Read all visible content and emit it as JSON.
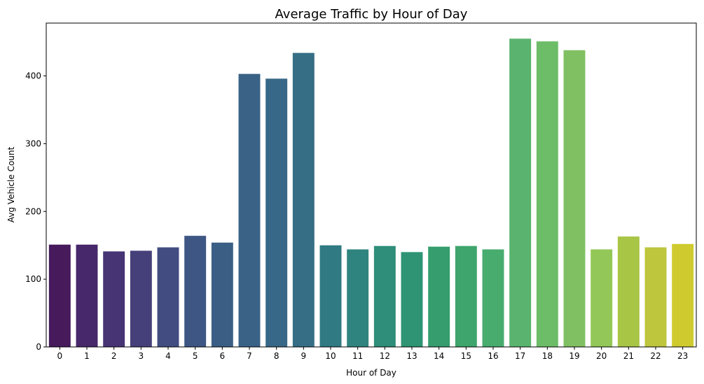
{
  "chart_data": {
    "type": "bar",
    "title": "Average Traffic by Hour of Day",
    "xlabel": "Hour of Day",
    "ylabel": "Avg Vehicle Count",
    "categories": [
      "0",
      "1",
      "2",
      "3",
      "4",
      "5",
      "6",
      "7",
      "8",
      "9",
      "10",
      "11",
      "12",
      "13",
      "14",
      "15",
      "16",
      "17",
      "18",
      "19",
      "20",
      "21",
      "22",
      "23"
    ],
    "values": [
      151,
      151,
      141,
      142,
      147,
      164,
      154,
      403,
      396,
      434,
      150,
      144,
      149,
      140,
      148,
      149,
      144,
      455,
      451,
      438,
      144,
      163,
      147,
      152
    ],
    "ylim": [
      0,
      478
    ],
    "yticks": [
      0,
      100,
      200,
      300,
      400
    ],
    "grid": false,
    "palette": "viridis",
    "colors": [
      "#461a5b",
      "#47286b",
      "#463474",
      "#45407a",
      "#424c81",
      "#3e5683",
      "#3b5e85",
      "#3a6287",
      "#386887",
      "#366e86",
      "#307a83",
      "#2f847f",
      "#2e8e79",
      "#2e9473",
      "#359d6e",
      "#3ea56c",
      "#48ac6f",
      "#5ab36e",
      "#6dbd68",
      "#80c062",
      "#93c757",
      "#a8c546",
      "#bdc63c",
      "#cfcb2f"
    ]
  }
}
